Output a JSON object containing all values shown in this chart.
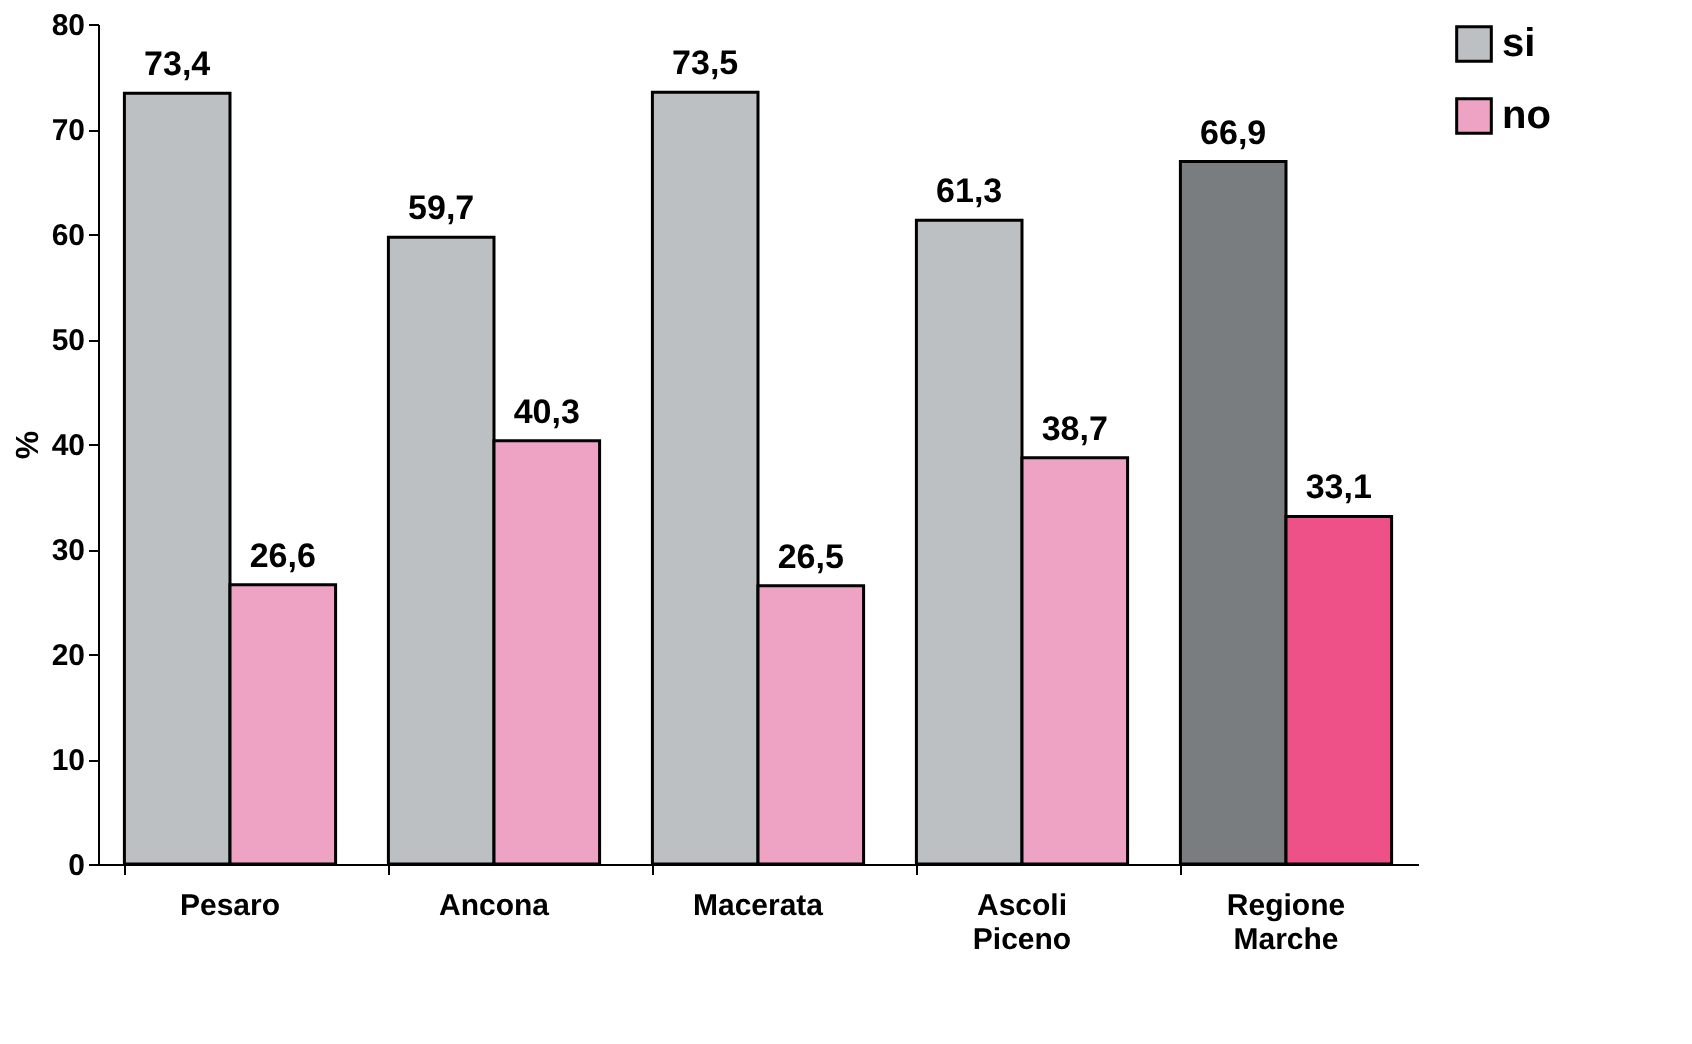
{
  "chart_data": {
    "type": "bar",
    "ylabel": "%",
    "categories": [
      "Pesaro",
      "Ancona",
      "Macerata",
      "Ascoli Piceno",
      "Regione Marche"
    ],
    "series": [
      {
        "name": "si",
        "color": "#bcc0c2",
        "colors": [
          "#bcc0c2",
          "#bcc0c2",
          "#bcc0c2",
          "#bcc0c2",
          "#7a7d80"
        ],
        "values": [
          73.4,
          59.7,
          73.5,
          61.3,
          66.9
        ],
        "value_labels": [
          "73,4",
          "59,7",
          "73,5",
          "61,3",
          "66,9"
        ]
      },
      {
        "name": "no",
        "color": "#eea3c4",
        "colors": [
          "#eea3c4",
          "#eea3c4",
          "#eea3c4",
          "#eea3c4",
          "#ee5187"
        ],
        "values": [
          26.6,
          40.3,
          26.5,
          38.7,
          33.1
        ],
        "value_labels": [
          "26,6",
          "40,3",
          "26,5",
          "38,7",
          "33,1"
        ]
      }
    ],
    "ylim": [
      0,
      80
    ],
    "yticks": [
      0,
      10,
      20,
      30,
      40,
      50,
      60,
      70,
      80
    ],
    "grid": false,
    "legend": "right"
  }
}
